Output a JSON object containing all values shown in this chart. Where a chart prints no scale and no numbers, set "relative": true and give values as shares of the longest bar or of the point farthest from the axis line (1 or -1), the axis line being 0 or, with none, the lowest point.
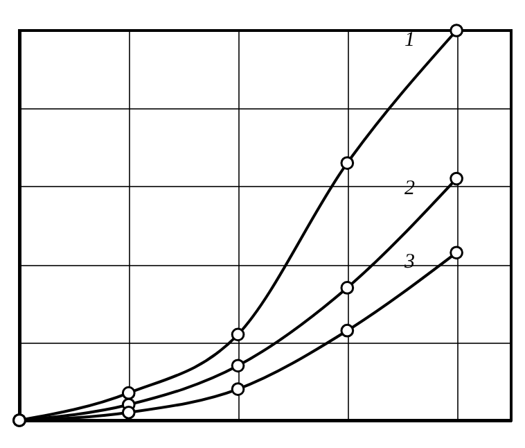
{
  "chart_data": {
    "type": "line",
    "relative": true,
    "categories": [
      null,
      null,
      null,
      null,
      null
    ],
    "grid": true,
    "marker": "circle",
    "line_style": "solid",
    "series": [
      {
        "name": "1",
        "color": "#000000",
        "values": [
          0,
          0.07,
          0.22,
          0.66,
          1
        ]
      },
      {
        "name": "2",
        "color": "#000000",
        "values": [
          0,
          0.04,
          0.14,
          0.34,
          0.62
        ]
      },
      {
        "name": "3",
        "color": "#000000",
        "values": [
          0,
          0.02,
          0.08,
          0.23,
          0.43
        ]
      }
    ]
  }
}
